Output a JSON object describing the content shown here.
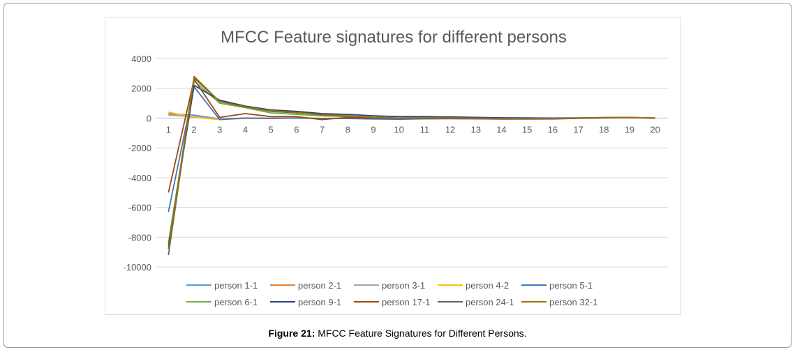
{
  "caption": {
    "label": "Figure 21:",
    "text": "MFCC Feature Signatures for Different Persons."
  },
  "chart_data": {
    "type": "line",
    "title": "MFCC Feature signatures for different persons",
    "xlabel": "",
    "ylabel": "",
    "ylim": [
      -10000,
      4000
    ],
    "yticks": [
      4000,
      2000,
      0,
      -2000,
      -4000,
      -6000,
      -8000,
      -10000
    ],
    "grid": true,
    "legend_position": "bottom",
    "x": [
      1,
      2,
      3,
      4,
      5,
      6,
      7,
      8,
      9,
      10,
      11,
      12,
      13,
      14,
      15,
      16,
      17,
      18,
      19,
      20
    ],
    "series": [
      {
        "name": "person 1-1",
        "color": "#5b9bd5",
        "values": [
          300,
          200,
          -50,
          0,
          0,
          0,
          -30,
          -20,
          -40,
          -50,
          -30,
          -20,
          -30,
          -50,
          -40,
          -30,
          -10,
          20,
          30,
          0
        ]
      },
      {
        "name": "person 2-1",
        "color": "#ed7d31",
        "values": [
          250,
          50,
          -80,
          -20,
          -10,
          0,
          -30,
          0,
          -40,
          -60,
          -40,
          -30,
          -40,
          -60,
          -50,
          -40,
          -10,
          10,
          20,
          0
        ]
      },
      {
        "name": "person 3-1",
        "color": "#a5a5a5",
        "values": [
          200,
          100,
          -60,
          -10,
          -10,
          10,
          -20,
          -10,
          -40,
          -60,
          -40,
          -30,
          -40,
          -50,
          -50,
          -40,
          -10,
          10,
          30,
          0
        ]
      },
      {
        "name": "person 4-2",
        "color": "#ffc000",
        "values": [
          400,
          50,
          -100,
          -20,
          -30,
          0,
          -20,
          -10,
          -50,
          -70,
          -40,
          -30,
          -40,
          -60,
          -60,
          -50,
          -10,
          20,
          30,
          0
        ]
      },
      {
        "name": "person 5-1",
        "color": "#4472c4",
        "values": [
          -6300,
          2100,
          -100,
          0,
          -20,
          0,
          -20,
          -30,
          -60,
          -80,
          -50,
          -40,
          -50,
          -70,
          -70,
          -60,
          -20,
          10,
          20,
          0
        ]
      },
      {
        "name": "person 6-1",
        "color": "#70ad47",
        "values": [
          -8400,
          2500,
          1000,
          700,
          350,
          250,
          150,
          100,
          0,
          -20,
          0,
          10,
          -20,
          -30,
          -40,
          -40,
          -10,
          30,
          40,
          0
        ]
      },
      {
        "name": "person 9-1",
        "color": "#264478",
        "values": [
          -8600,
          2200,
          1200,
          800,
          550,
          450,
          300,
          250,
          150,
          100,
          100,
          80,
          50,
          20,
          10,
          0,
          10,
          40,
          50,
          0
        ]
      },
      {
        "name": "person 17-1",
        "color": "#9e480e",
        "values": [
          -5000,
          2600,
          50,
          300,
          100,
          100,
          -100,
          50,
          0,
          -20,
          -10,
          -20,
          -30,
          -40,
          -40,
          -40,
          -10,
          20,
          30,
          0
        ]
      },
      {
        "name": "person 24-1",
        "color": "#636363",
        "values": [
          -9200,
          2700,
          1100,
          750,
          450,
          350,
          250,
          150,
          50,
          0,
          20,
          10,
          0,
          -20,
          -30,
          -30,
          0,
          30,
          40,
          0
        ]
      },
      {
        "name": "person 32-1",
        "color": "#997300",
        "values": [
          -8800,
          2800,
          1100,
          750,
          500,
          380,
          200,
          150,
          50,
          0,
          20,
          10,
          -10,
          -20,
          -30,
          -30,
          0,
          30,
          50,
          0
        ]
      }
    ]
  }
}
